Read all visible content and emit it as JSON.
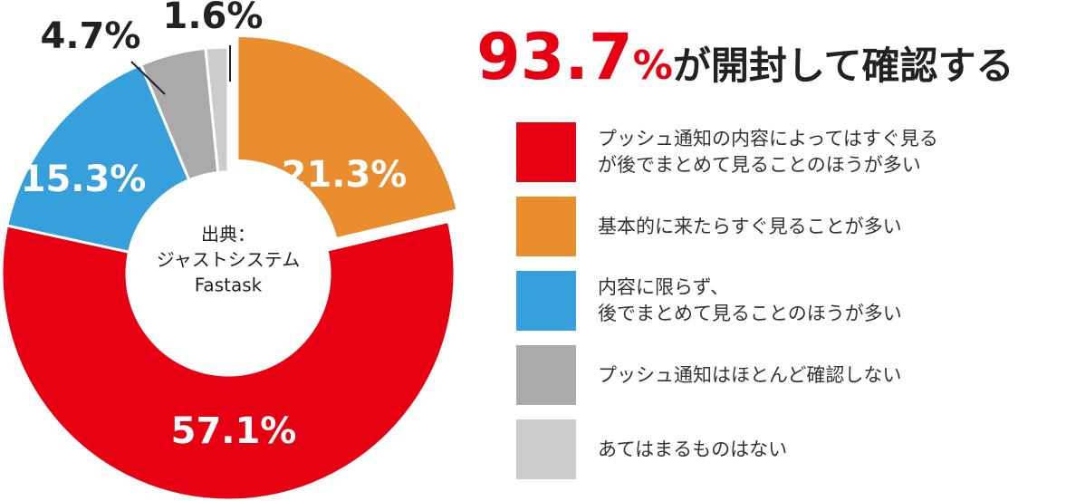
{
  "chart_data": {
    "type": "pie",
    "title": {
      "value_label": "93.7",
      "unit": "%",
      "text": "が開封して確認する"
    },
    "annotation": [
      "出典：",
      "ジャストシステム",
      "Fastask"
    ],
    "categories": [
      "基本的に来たらすぐ見ることが多い",
      "プッシュ通知の内容によってはすぐ見る\nが後でまとめて見ることのほうが多い",
      "内容に限らず、\n後でまとめて見ることのほうが多い",
      "プッシュ通知はほとんど確認しない",
      "あてはまるものはない"
    ],
    "values": [
      21.3,
      57.1,
      15.3,
      4.7,
      1.6
    ],
    "value_labels": [
      "21.3%",
      "57.1%",
      "15.3%",
      "4.7%",
      "1.6%"
    ],
    "colors": [
      "#ea8d2e",
      "#e60012",
      "#35a0db",
      "#aaaaaa",
      "#cccccc"
    ]
  }
}
